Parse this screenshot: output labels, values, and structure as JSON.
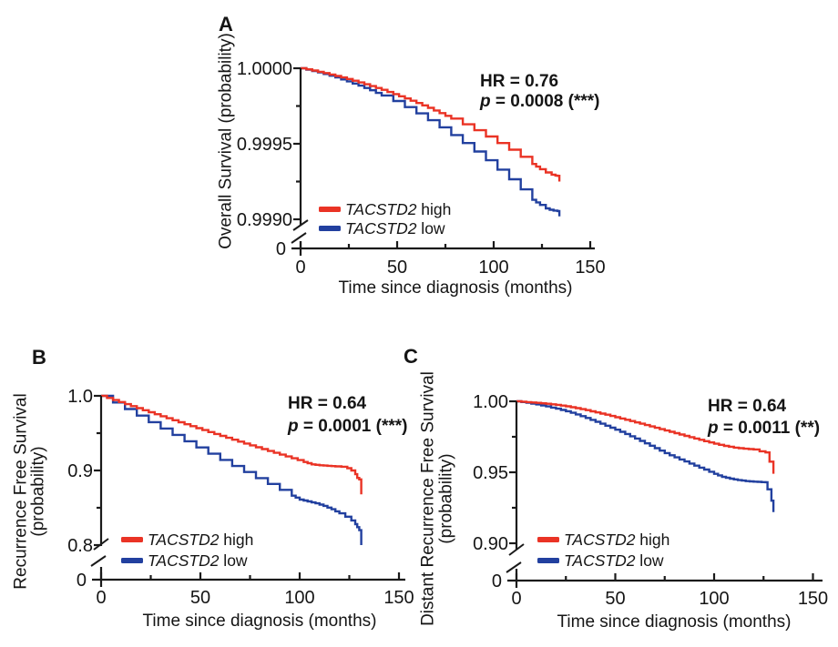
{
  "colors": {
    "high": "#ea3325",
    "low": "#22409f",
    "axis": "#1a1a1a",
    "text": "#151515",
    "background": "#ffffff"
  },
  "chart_data": [
    {
      "panel_label": "A",
      "type": "line",
      "chart_kind": "kaplan-meier-survival-step-curves",
      "ylabel_lines": [
        "Overall Survival (probability)"
      ],
      "xlabel": "Time since diagnosis (months)",
      "xlim": [
        0,
        150
      ],
      "x_ticks": [
        {
          "value": 0,
          "label": "0"
        },
        {
          "value": 50,
          "label": "50"
        },
        {
          "value": 100,
          "label": "100"
        },
        {
          "value": 150,
          "label": "150"
        }
      ],
      "x_minor_ticks": [
        25,
        75,
        125
      ],
      "y_axis_break": true,
      "origin_label": "0",
      "ylim_display": [
        0.999,
        1.0
      ],
      "y_ticks": [
        {
          "value": 1.0,
          "label": "1.0000"
        },
        {
          "value": 0.9995,
          "label": "0.9995"
        },
        {
          "value": 0.999,
          "label": "0.9990"
        }
      ],
      "y_minor_ticks": [
        0.99975,
        0.99925
      ],
      "grid": false,
      "legend_position": "lower-left-inside",
      "stats": {
        "hr": "HR = 0.76",
        "p_var": "p",
        "p_rest": " = 0.0008 (***)"
      },
      "legend": [
        {
          "gene": "TACSTD2",
          "label": " high",
          "series": "high"
        },
        {
          "gene": "TACSTD2",
          "label": " low",
          "series": "low"
        }
      ],
      "series": [
        {
          "name": "TACSTD2 high",
          "key": "high",
          "x": [
            0,
            6,
            12,
            18,
            24,
            30,
            36,
            42,
            48,
            54,
            60,
            66,
            72,
            78,
            84,
            90,
            96,
            102,
            108,
            114,
            120,
            124,
            127,
            130,
            132,
            133,
            134
          ],
          "y": [
            1.0,
            0.999985,
            0.999968,
            0.999949,
            0.999929,
            0.999906,
            0.999882,
            0.999857,
            0.999829,
            0.9998,
            0.99977,
            0.999738,
            0.999703,
            0.999667,
            0.999629,
            0.99959,
            0.999548,
            0.999505,
            0.999461,
            0.999414,
            0.999366,
            0.999332,
            0.99931,
            0.999296,
            0.99929,
            0.999288,
            0.99925
          ]
        },
        {
          "name": "TACSTD2 low",
          "key": "low",
          "x": [
            0,
            6,
            12,
            18,
            24,
            30,
            36,
            42,
            48,
            54,
            60,
            66,
            72,
            78,
            84,
            90,
            96,
            102,
            108,
            114,
            120,
            124,
            127,
            129,
            131,
            133,
            134
          ],
          "y": [
            1.0,
            0.999982,
            0.999962,
            0.999939,
            0.999913,
            0.999885,
            0.999854,
            0.99982,
            0.999783,
            0.999743,
            0.999701,
            0.999656,
            0.999609,
            0.999558,
            0.999505,
            0.999449,
            0.999391,
            0.999329,
            0.999265,
            0.999198,
            0.999129,
            0.999095,
            0.999072,
            0.999063,
            0.999058,
            0.999055,
            0.99902
          ]
        }
      ]
    },
    {
      "panel_label": "B",
      "type": "line",
      "chart_kind": "kaplan-meier-survival-step-curves",
      "ylabel_lines": [
        "Recurrence Free Survival",
        "(probability)"
      ],
      "xlabel": "Time since diagnosis (months)",
      "xlim": [
        0,
        150
      ],
      "x_ticks": [
        {
          "value": 0,
          "label": "0"
        },
        {
          "value": 50,
          "label": "50"
        },
        {
          "value": 100,
          "label": "100"
        },
        {
          "value": 150,
          "label": "150"
        }
      ],
      "x_minor_ticks": [
        25,
        75,
        125
      ],
      "y_axis_break": true,
      "origin_label": "0",
      "ylim_display": [
        0.8,
        1.0
      ],
      "y_ticks": [
        {
          "value": 1.0,
          "label": "1.0"
        },
        {
          "value": 0.9,
          "label": "0.9"
        },
        {
          "value": 0.8,
          "label": "0.8"
        }
      ],
      "y_minor_ticks": [
        0.95,
        0.85
      ],
      "grid": false,
      "legend_position": "lower-left-inside",
      "stats": {
        "hr": "HR = 0.64",
        "p_var": "p",
        "p_rest": " = 0.0001 (***)"
      },
      "legend": [
        {
          "gene": "TACSTD2",
          "label": " high",
          "series": "high"
        },
        {
          "gene": "TACSTD2",
          "label": " low",
          "series": "low"
        }
      ],
      "series": [
        {
          "name": "TACSTD2 high",
          "key": "high",
          "x": [
            0,
            6,
            12,
            18,
            24,
            30,
            36,
            42,
            48,
            54,
            60,
            66,
            72,
            78,
            84,
            90,
            96,
            102,
            106,
            110,
            114,
            118,
            121,
            124,
            126,
            128,
            129,
            130,
            131
          ],
          "y": [
            1.0,
            0.9944,
            0.9889,
            0.9835,
            0.978,
            0.9727,
            0.9673,
            0.962,
            0.9567,
            0.9515,
            0.9464,
            0.9412,
            0.9361,
            0.9311,
            0.9261,
            0.9212,
            0.9163,
            0.9114,
            0.9082,
            0.907,
            0.9062,
            0.9055,
            0.905,
            0.903,
            0.9,
            0.895,
            0.89,
            0.888,
            0.868
          ]
        },
        {
          "name": "TACSTD2 low",
          "key": "low",
          "x": [
            0,
            6,
            12,
            18,
            24,
            30,
            36,
            42,
            48,
            54,
            60,
            66,
            72,
            78,
            84,
            90,
            96,
            100,
            104,
            108,
            112,
            116,
            120,
            123,
            126,
            128,
            129,
            130,
            131
          ],
          "y": [
            1.0,
            0.9911,
            0.9823,
            0.9735,
            0.9648,
            0.9562,
            0.9477,
            0.9392,
            0.9308,
            0.9225,
            0.9142,
            0.906,
            0.8979,
            0.8898,
            0.8819,
            0.874,
            0.8662,
            0.861,
            0.8585,
            0.856,
            0.8525,
            0.848,
            0.8425,
            0.838,
            0.833,
            0.828,
            0.824,
            0.82,
            0.8
          ]
        }
      ]
    },
    {
      "panel_label": "C",
      "type": "line",
      "chart_kind": "kaplan-meier-survival-step-curves",
      "ylabel_lines": [
        "Distant Recurrence Free Survival",
        "(probability)"
      ],
      "xlabel": "Time since diagnosis (months)",
      "xlim": [
        0,
        150
      ],
      "x_ticks": [
        {
          "value": 0,
          "label": "0"
        },
        {
          "value": 50,
          "label": "50"
        },
        {
          "value": 100,
          "label": "100"
        },
        {
          "value": 150,
          "label": "150"
        }
      ],
      "x_minor_ticks": [
        25,
        75,
        125
      ],
      "y_axis_break": true,
      "origin_label": "0",
      "ylim_display": [
        0.9,
        1.0
      ],
      "y_ticks": [
        {
          "value": 1.0,
          "label": "1.00"
        },
        {
          "value": 0.95,
          "label": "0.95"
        },
        {
          "value": 0.9,
          "label": "0.90"
        }
      ],
      "y_minor_ticks": [
        0.975,
        0.925
      ],
      "grid": false,
      "legend_position": "lower-left-inside",
      "stats": {
        "hr": "HR = 0.64",
        "p_var": "p",
        "p_rest": " = 0.0011 (**)"
      },
      "legend": [
        {
          "gene": "TACSTD2",
          "label": " high",
          "series": "high"
        },
        {
          "gene": "TACSTD2",
          "label": " low",
          "series": "low"
        }
      ],
      "series": [
        {
          "name": "TACSTD2 high",
          "key": "high",
          "x": [
            0,
            5,
            10,
            15,
            20,
            25,
            30,
            35,
            40,
            45,
            50,
            55,
            60,
            65,
            70,
            75,
            80,
            85,
            90,
            95,
            100,
            105,
            110,
            115,
            120,
            123,
            126,
            128,
            130
          ],
          "y": [
            1.0,
            0.99945,
            0.9989,
            0.99825,
            0.9975,
            0.9965,
            0.9952,
            0.99375,
            0.9922,
            0.99055,
            0.9888,
            0.987,
            0.98515,
            0.98325,
            0.98135,
            0.97945,
            0.97755,
            0.97565,
            0.9738,
            0.97195,
            0.97015,
            0.9686,
            0.9674,
            0.9666,
            0.9661,
            0.9648,
            0.964,
            0.9575,
            0.949
          ]
        },
        {
          "name": "TACSTD2 low",
          "key": "low",
          "x": [
            0,
            5,
            10,
            15,
            20,
            25,
            30,
            35,
            40,
            45,
            50,
            55,
            60,
            65,
            70,
            75,
            80,
            85,
            90,
            95,
            100,
            104,
            108,
            112,
            116,
            120,
            124,
            126,
            127,
            129,
            130
          ],
          "y": [
            1.0,
            0.999,
            0.9978,
            0.9964,
            0.9948,
            0.993,
            0.9908,
            0.9883,
            0.9856,
            0.9828,
            0.98,
            0.977,
            0.9738,
            0.9704,
            0.967,
            0.9635,
            0.9605,
            0.9576,
            0.9547,
            0.9519,
            0.9489,
            0.9468,
            0.9455,
            0.9445,
            0.9438,
            0.9434,
            0.9431,
            0.943,
            0.938,
            0.93,
            0.922
          ]
        }
      ]
    }
  ]
}
